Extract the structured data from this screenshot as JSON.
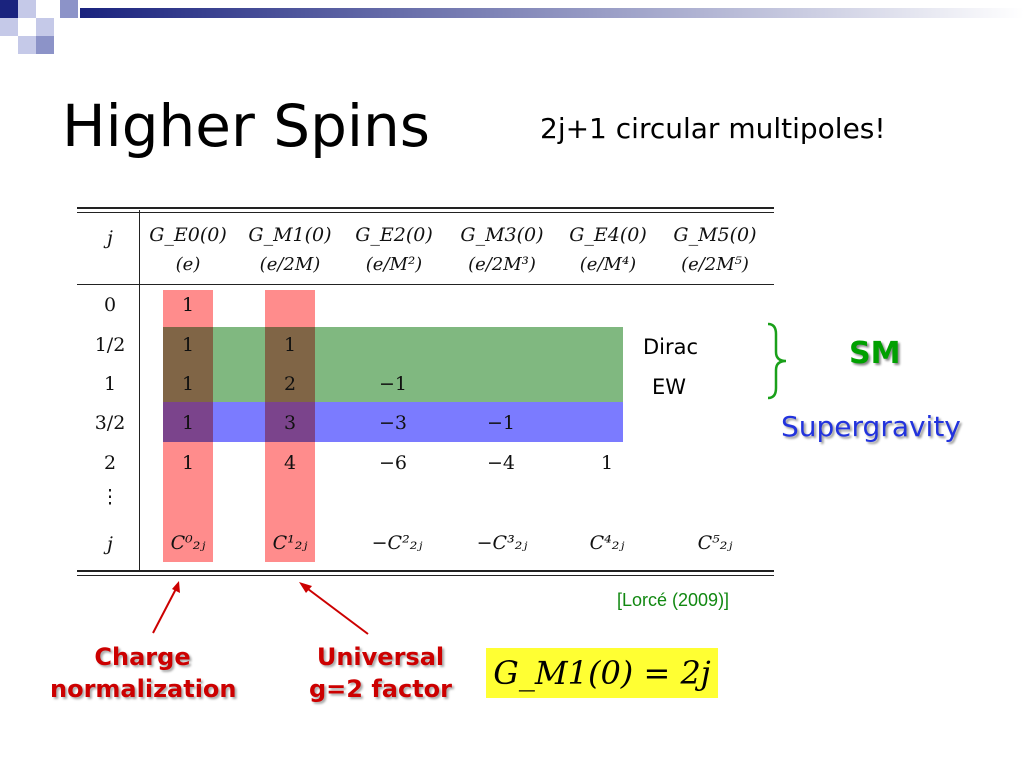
{
  "title": "Higher Spins",
  "subtitle": "2j+1 circular multipoles!",
  "table": {
    "j_header": "j",
    "headers": [
      {
        "top": "G_E0(0)",
        "unit": "(e)"
      },
      {
        "top": "G_M1(0)",
        "unit": "(e/2M)"
      },
      {
        "top": "G_E2(0)",
        "unit": "(e/M²)"
      },
      {
        "top": "G_M3(0)",
        "unit": "(e/2M³)"
      },
      {
        "top": "G_E4(0)",
        "unit": "(e/M⁴)"
      },
      {
        "top": "G_M5(0)",
        "unit": "(e/2M⁵)"
      }
    ],
    "rows": [
      {
        "j": "0",
        "cells": [
          "1",
          "",
          "",
          "",
          "",
          ""
        ]
      },
      {
        "j": "1/2",
        "cells": [
          "1",
          "1",
          "",
          "",
          "",
          ""
        ]
      },
      {
        "j": "1",
        "cells": [
          "1",
          "2",
          "−1",
          "",
          "",
          ""
        ]
      },
      {
        "j": "3/2",
        "cells": [
          "1",
          "3",
          "−3",
          "−1",
          "",
          ""
        ]
      },
      {
        "j": "2",
        "cells": [
          "1",
          "4",
          "−6",
          "−4",
          "1",
          ""
        ]
      },
      {
        "j": "⋮",
        "cells": [
          "",
          "",
          "",
          "",
          "",
          ""
        ]
      },
      {
        "j": "j",
        "cells": [
          "C⁰₂ⱼ",
          "C¹₂ⱼ",
          "−C²₂ⱼ",
          "−C³₂ⱼ",
          "C⁴₂ⱼ",
          "C⁵₂ⱼ"
        ]
      }
    ]
  },
  "labels": {
    "dirac": "Dirac",
    "ew": "EW",
    "sm": "SM",
    "supergravity": "Supergravity",
    "charge_line1": "Charge",
    "charge_line2": "normalization",
    "universal_line1": "Universal",
    "universal_line2": "g=2 factor",
    "reference": "[Lorcé (2009)]",
    "formula": "G_M1(0) = 2j"
  },
  "colors": {
    "red_band": "#ff8080",
    "green_band": "#80b880",
    "blue_band": "#7b7bff",
    "sm_green": "#00a000",
    "supergravity_blue": "#2233dd",
    "annotation_red": "#cc0000",
    "formula_highlight": "#ffff33",
    "decor_navy": "#1a237e"
  }
}
